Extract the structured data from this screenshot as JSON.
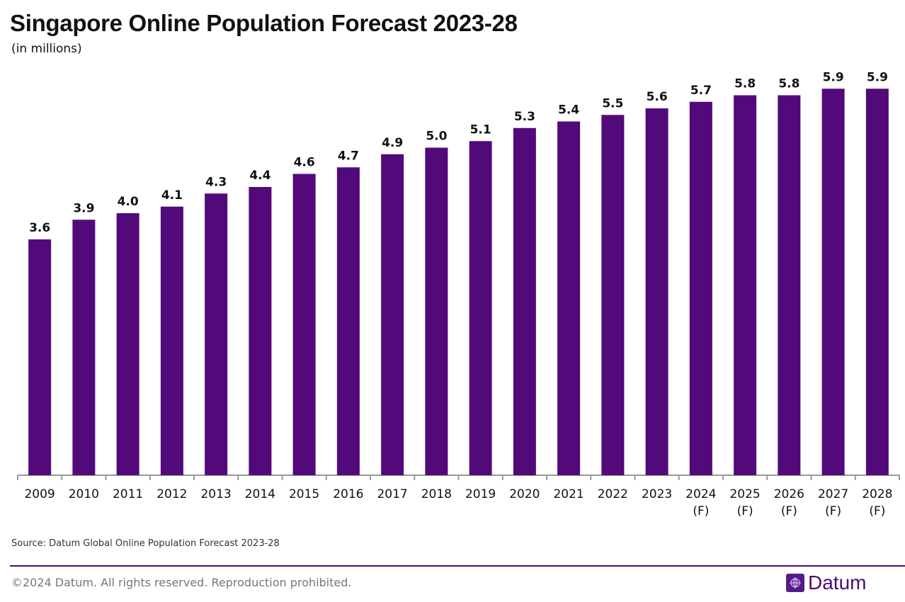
{
  "footer": {
    "source": "Source: Datum Global Online Population Forecast 2023-28",
    "copyright": "©2024 Datum. All rights reserved. Reproduction prohibited.",
    "logo_text": "Datum",
    "logo_icon": "globe-icon",
    "accent_color": "#4a0d6e"
  },
  "chart_data": {
    "type": "bar",
    "title": "Singapore Online Population Forecast 2023-28",
    "subtitle": "(in millions)",
    "xlabel": "",
    "ylabel": "",
    "ylim": [
      0,
      6
    ],
    "grid": false,
    "bar_color": "#520a7a",
    "categories": [
      "2009",
      "2010",
      "2011",
      "2012",
      "2013",
      "2014",
      "2015",
      "2016",
      "2017",
      "2018",
      "2019",
      "2020",
      "2021",
      "2022",
      "2023",
      "2024\n(F)",
      "2025\n(F)",
      "2026\n(F)",
      "2027\n(F)",
      "2028\n(F)"
    ],
    "values": [
      3.6,
      3.9,
      4.0,
      4.1,
      4.3,
      4.4,
      4.6,
      4.7,
      4.9,
      5.0,
      5.1,
      5.3,
      5.4,
      5.5,
      5.6,
      5.7,
      5.8,
      5.8,
      5.9,
      5.9
    ],
    "data_labels": [
      "3.6",
      "3.9",
      "4.0",
      "4.1",
      "4.3",
      "4.4",
      "4.6",
      "4.7",
      "4.9",
      "5.0",
      "5.1",
      "5.3",
      "5.4",
      "5.5",
      "5.6",
      "5.7",
      "5.8",
      "5.8",
      "5.9",
      "5.9"
    ]
  }
}
